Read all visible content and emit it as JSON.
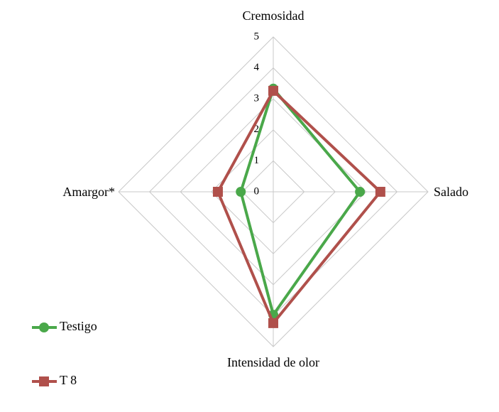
{
  "chart_data": {
    "type": "radar",
    "categories": [
      "Cremosidad",
      "Salado",
      "Intensidad de olor",
      "Amargor*"
    ],
    "ylim": [
      0,
      5
    ],
    "yticks": [
      0,
      1,
      2,
      3,
      4,
      5
    ],
    "grid": true,
    "legend": "bottom-left",
    "series": [
      {
        "name": "Testigo",
        "color": "#4aa84a",
        "marker": "circle",
        "values": [
          3.33,
          2.8,
          3.97,
          1.05
        ]
      },
      {
        "name": "T 8",
        "color": "#b0504b",
        "marker": "square",
        "values": [
          3.26,
          3.46,
          4.24,
          1.79
        ]
      }
    ]
  }
}
